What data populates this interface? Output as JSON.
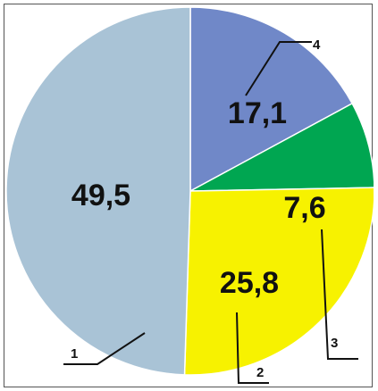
{
  "chart_data": {
    "type": "pie",
    "slices": [
      {
        "id": "4",
        "value": 17.1,
        "label": "17,1",
        "color": "#7088c8"
      },
      {
        "id": "3",
        "value": 7.6,
        "label": "7,6",
        "color": "#00a651"
      },
      {
        "id": "2",
        "value": 25.8,
        "label": "25,8",
        "color": "#f7f200"
      },
      {
        "id": "1",
        "value": 49.5,
        "label": "49,5",
        "color": "#a9c3d6"
      }
    ],
    "start": "12 o'clock",
    "direction": "clockwise"
  }
}
